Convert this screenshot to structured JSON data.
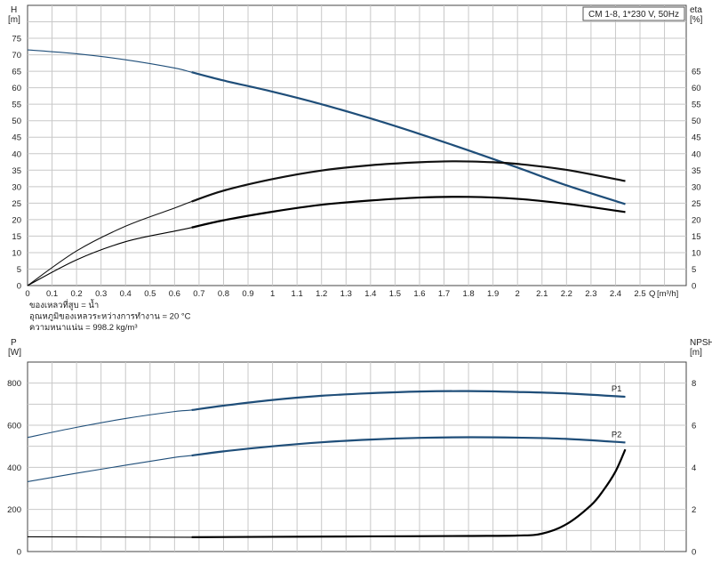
{
  "chart_data": [
    {
      "type": "line",
      "panel": "head-efficiency",
      "legend_box": "CM 1-8, 1*230 V, 50Hz",
      "ylabel_left": "H",
      "yunit_left": "[m]",
      "ylabel_right": "eta",
      "yunit_right": "[%]",
      "xlabel": "Q",
      "xunit": "[m³/h]",
      "xlim": [
        0,
        2.7
      ],
      "xticks": [
        0,
        0.1,
        0.2,
        0.3,
        0.4,
        0.5,
        0.6,
        0.7,
        0.8,
        0.9,
        1,
        1.1,
        1.2,
        1.3,
        1.4,
        1.5,
        1.6,
        1.7,
        1.8,
        1.9,
        2,
        2.1,
        2.2,
        2.3,
        2.4,
        2.5
      ],
      "xtick_labels": [
        "0",
        "0.1",
        "0.2",
        "0.3",
        "0.4",
        "0.5",
        "0.6",
        "0.7",
        "0.8",
        "0.9",
        "1",
        "1.1",
        "1.2",
        "1.3",
        "1.4",
        "1.5",
        "1.6",
        "1.7",
        "1.8",
        "1.9",
        "2",
        "2.1",
        "2.2",
        "2.3",
        "2.4",
        "2.5"
      ],
      "ylim_left": [
        0,
        85
      ],
      "yticks_left": [
        0,
        5,
        10,
        15,
        20,
        25,
        30,
        35,
        40,
        45,
        50,
        55,
        60,
        65,
        70,
        75
      ],
      "ylim_right": [
        0,
        85
      ],
      "yticks_right": [
        0,
        5,
        10,
        15,
        20,
        25,
        30,
        35,
        40,
        45,
        50,
        55,
        60,
        65
      ],
      "grid": true,
      "notes": [
        "ของเหลวที่สูบ = น้ำ",
        "อุณหภูมิของเหลวระหว่างการทำงาน = 20 °C",
        "ความหนาแน่น = 998.2 kg/m³"
      ],
      "series": [
        {
          "axis": "left",
          "color": "#1f4e79",
          "op_range": [
            0.67,
            2.44
          ],
          "x": [
            0,
            0.2,
            0.4,
            0.6,
            0.67,
            0.8,
            1.0,
            1.2,
            1.4,
            1.6,
            1.8,
            2.0,
            2.2,
            2.44
          ],
          "values": [
            71.5,
            70.3,
            68.5,
            66.0,
            64.7,
            62.2,
            58.8,
            55.0,
            50.7,
            46.0,
            41.0,
            35.8,
            30.4,
            24.7
          ]
        },
        {
          "axis": "right",
          "color": "#111111",
          "op_range": [
            0.67,
            2.44
          ],
          "x": [
            0,
            0.2,
            0.4,
            0.6,
            0.67,
            0.8,
            1.0,
            1.2,
            1.4,
            1.6,
            1.75,
            1.9,
            2.0,
            2.2,
            2.44
          ],
          "values": [
            0,
            10.5,
            18.0,
            23.5,
            25.5,
            28.8,
            32.3,
            34.9,
            36.5,
            37.4,
            37.7,
            37.4,
            36.9,
            35.1,
            31.7
          ]
        },
        {
          "axis": "right",
          "color": "#000000",
          "op_range": [
            0.67,
            2.44
          ],
          "x": [
            0,
            0.2,
            0.4,
            0.6,
            0.67,
            0.8,
            1.0,
            1.2,
            1.4,
            1.6,
            1.8,
            2.0,
            2.2,
            2.44
          ],
          "values": [
            0,
            7.8,
            13.3,
            16.5,
            17.6,
            19.8,
            22.4,
            24.5,
            25.8,
            26.7,
            26.9,
            26.3,
            24.8,
            22.3
          ]
        }
      ]
    },
    {
      "type": "line",
      "panel": "power-npsh",
      "ylabel_left": "P",
      "yunit_left": "[W]",
      "ylabel_right": "NPSH",
      "yunit_right": "[m]",
      "xlim": [
        0,
        2.7
      ],
      "xticks": [
        0,
        0.1,
        0.2,
        0.3,
        0.4,
        0.5,
        0.6,
        0.7,
        0.8,
        0.9,
        1,
        1.1,
        1.2,
        1.3,
        1.4,
        1.5,
        1.6,
        1.7,
        1.8,
        1.9,
        2,
        2.1,
        2.2,
        2.3,
        2.4,
        2.5,
        2.6
      ],
      "ylim_left": [
        0,
        900
      ],
      "yticks_left": [
        0,
        200,
        400,
        600,
        800
      ],
      "ylim_right": [
        0,
        9
      ],
      "yticks_right": [
        0,
        2,
        4,
        6,
        8
      ],
      "grid": true,
      "series": [
        {
          "name": "P1",
          "axis": "left",
          "color": "#1f4e79",
          "op_range": [
            0.67,
            2.44
          ],
          "x": [
            0,
            0.2,
            0.4,
            0.6,
            0.67,
            0.8,
            1.0,
            1.2,
            1.4,
            1.6,
            1.8,
            2.0,
            2.2,
            2.44
          ],
          "values": [
            542,
            590,
            632,
            665,
            672,
            693,
            720,
            740,
            752,
            760,
            762,
            758,
            751,
            735
          ]
        },
        {
          "name": "P2",
          "axis": "left",
          "color": "#1f4e79",
          "op_range": [
            0.67,
            2.44
          ],
          "x": [
            0,
            0.2,
            0.4,
            0.6,
            0.67,
            0.8,
            1.0,
            1.2,
            1.4,
            1.6,
            1.8,
            2.0,
            2.2,
            2.44
          ],
          "values": [
            332,
            372,
            410,
            447,
            456,
            476,
            500,
            519,
            532,
            540,
            543,
            541,
            535,
            518
          ]
        },
        {
          "axis": "right",
          "color": "#000000",
          "op_range": [
            0.67,
            2.44
          ],
          "x": [
            0,
            0.3,
            0.67,
            1.0,
            1.4,
            1.8,
            2.0,
            2.1,
            2.2,
            2.3,
            2.35,
            2.4,
            2.44
          ],
          "values": [
            0.7,
            0.69,
            0.68,
            0.7,
            0.72,
            0.74,
            0.76,
            0.85,
            1.3,
            2.2,
            2.9,
            3.8,
            4.85
          ]
        }
      ]
    }
  ]
}
